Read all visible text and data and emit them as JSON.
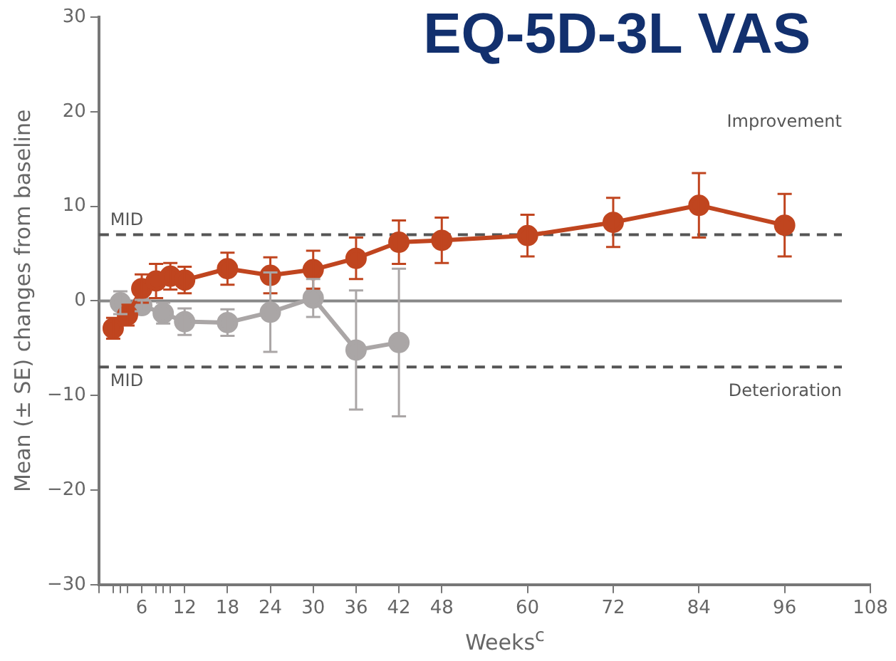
{
  "chart_data": {
    "type": "line",
    "title": "EQ-5D-3L VAS",
    "xlabel": "Weeks$^{c}$",
    "ylabel": "Mean (± SE) changes from baseline",
    "xlim": [
      0,
      108
    ],
    "xticks": [
      {
        "value": 0,
        "label": null
      },
      {
        "value": 2,
        "label": null
      },
      {
        "value": 3,
        "label": null
      },
      {
        "value": 4,
        "label": null
      },
      6,
      {
        "value": 8,
        "label": null
      },
      {
        "value": 9,
        "label": null
      },
      {
        "value": 10,
        "label": null
      },
      12,
      18,
      24,
      30,
      36,
      42,
      48,
      60,
      72,
      84,
      96,
      108
    ],
    "ylim": [
      -30,
      30
    ],
    "yticks": [
      -30,
      -20,
      -10,
      0,
      10,
      20,
      30
    ],
    "grid": false,
    "legend": false,
    "marker": "circle",
    "line_style": "solid",
    "series": [
      {
        "color": "#c0451f",
        "x": [
          2,
          4,
          6,
          8,
          10,
          12,
          18,
          24,
          30,
          36,
          42,
          48,
          60,
          72,
          84,
          96
        ],
        "values": [
          -2.9,
          -1.5,
          1.3,
          2.1,
          2.6,
          2.2,
          3.4,
          2.7,
          3.3,
          4.5,
          6.2,
          6.4,
          6.9,
          8.3,
          10.1,
          8.0
        ],
        "errors": [
          1.1,
          1.1,
          1.5,
          1.8,
          1.4,
          1.4,
          1.7,
          1.9,
          2.0,
          2.2,
          2.3,
          2.4,
          2.2,
          2.6,
          3.4,
          3.3
        ]
      },
      {
        "color": "#aaa6a6",
        "x": [
          3,
          6,
          9,
          12,
          18,
          24,
          30,
          36,
          42
        ],
        "values": [
          -0.2,
          -0.5,
          -1.3,
          -2.2,
          -2.3,
          -1.2,
          0.3,
          -5.2,
          -4.4
        ],
        "errors": [
          1.2,
          0.6,
          1.1,
          1.4,
          1.4,
          4.2,
          2.0,
          6.3,
          7.8
        ]
      }
    ],
    "ref_lines": [
      {
        "axis": "y",
        "value": 7,
        "label": "MID",
        "line_style": "dashed",
        "color": "#555555"
      },
      {
        "axis": "y",
        "value": -7,
        "label": "MID",
        "line_style": "dashed",
        "color": "#555555"
      },
      {
        "axis": "y",
        "value": 0,
        "label": null,
        "line_style": "solid",
        "color": "#888888"
      }
    ],
    "annotations": [
      "Improvement",
      "Deterioration"
    ]
  }
}
